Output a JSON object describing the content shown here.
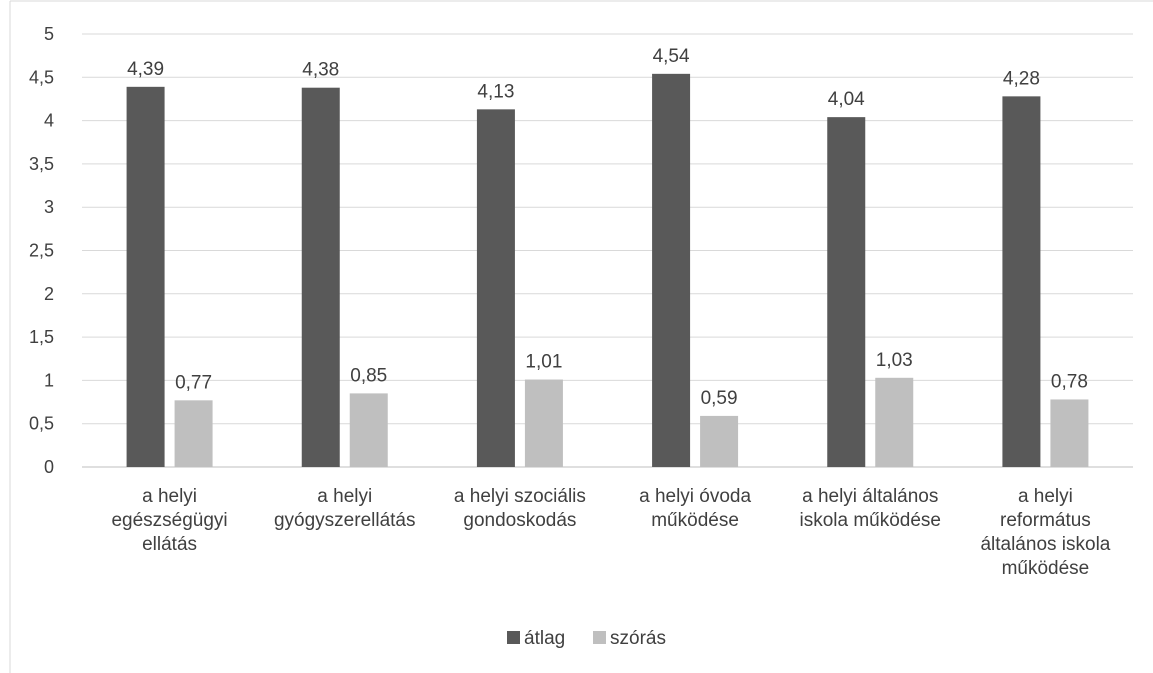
{
  "chart_data": {
    "type": "bar",
    "categories": [
      [
        "a helyi",
        "egészségügyi",
        "ellátás"
      ],
      [
        "a helyi",
        "gyógyszerellátás"
      ],
      [
        "a helyi szociális",
        "gondoskodás"
      ],
      [
        "a helyi óvoda",
        "működése"
      ],
      [
        "a helyi általános",
        "iskola működése"
      ],
      [
        "a helyi",
        "református",
        "általános iskola",
        "működése"
      ]
    ],
    "series": [
      {
        "name": "átlag",
        "values": [
          4.39,
          4.38,
          4.13,
          4.54,
          4.04,
          4.28
        ],
        "labels": [
          "4,39",
          "4,38",
          "4,13",
          "4,54",
          "4,04",
          "4,28"
        ],
        "color": "#595959"
      },
      {
        "name": "szórás",
        "values": [
          0.77,
          0.85,
          1.01,
          0.59,
          1.03,
          0.78
        ],
        "labels": [
          "0,77",
          "0,85",
          "1,01",
          "0,59",
          "1,03",
          "0,78"
        ],
        "color": "#bfbfbf"
      }
    ],
    "ylim": [
      0,
      5
    ],
    "yticks": [
      0,
      0.5,
      1,
      1.5,
      2,
      2.5,
      3,
      3.5,
      4,
      4.5,
      5
    ],
    "ytick_labels": [
      "0",
      "0,5",
      "1",
      "1,5",
      "2",
      "2,5",
      "3",
      "3,5",
      "4",
      "4,5",
      "5"
    ],
    "grid": true,
    "legend": "bottom",
    "title": "",
    "xlabel": "",
    "ylabel": ""
  }
}
